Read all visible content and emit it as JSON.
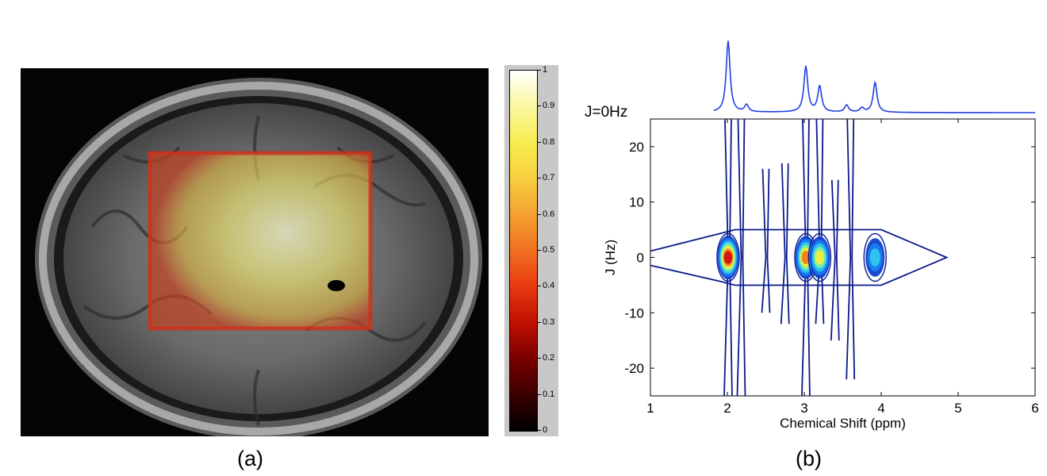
{
  "panel_a": {
    "caption": "(a)",
    "colorbar": {
      "ticks": [
        "0",
        "0.1",
        "0.2",
        "0.3",
        "0.4",
        "0.5",
        "0.6",
        "0.7",
        "0.8",
        "0.9",
        "1"
      ],
      "colors": [
        "#000000",
        "#7a0000",
        "#e83a10",
        "#f4a030",
        "#f8ec50",
        "#ffffff"
      ]
    }
  },
  "panel_b": {
    "caption": "(b)"
  },
  "chart_data": [
    {
      "type": "line",
      "title": "",
      "label": "J=0Hz",
      "color": "#1f3fe0",
      "x_direction": "reversed",
      "peaks_ppm": [
        2.01,
        2.25,
        3.02,
        3.2,
        3.55,
        3.75,
        3.92
      ],
      "relative_heights": [
        1.0,
        0.1,
        0.64,
        0.36,
        0.1,
        0.06,
        0.42
      ]
    },
    {
      "type": "contour",
      "xlabel": "Chemical Shift (ppm)",
      "ylabel": "J (Hz)",
      "xlim": [
        1,
        6
      ],
      "ylim": [
        -25,
        25
      ],
      "x_ticks": [
        1,
        2,
        3,
        4,
        5,
        6
      ],
      "y_ticks": [
        20,
        10,
        0,
        -10,
        -20
      ],
      "x_tick_labels": [
        "1",
        "2",
        "3",
        "4",
        "5",
        "6"
      ],
      "y_tick_labels": [
        "20",
        "10",
        "0",
        "-10",
        "-20"
      ],
      "grid": false,
      "peaks": [
        {
          "ppm": 2.01,
          "j": 0,
          "relative_intensity": 1.0
        },
        {
          "ppm": 3.02,
          "j": 0,
          "relative_intensity": 0.85
        },
        {
          "ppm": 3.2,
          "j": 0,
          "relative_intensity": 0.7
        },
        {
          "ppm": 3.92,
          "j": 0,
          "relative_intensity": 0.55
        }
      ]
    }
  ]
}
